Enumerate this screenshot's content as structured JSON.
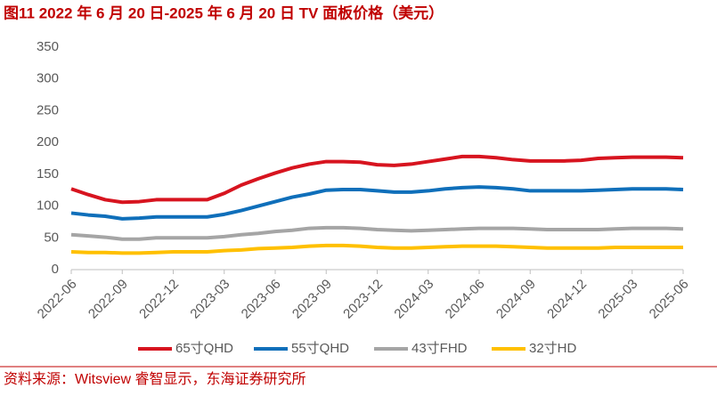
{
  "chart_data": {
    "type": "line",
    "title": "图11  2022 年 6 月 20 日-2025 年 6 月 20 日 TV 面板价格（美元）",
    "source": "资料来源：Witsview 睿智显示，东海证券研究所",
    "categories": [
      "2022-06",
      null,
      null,
      "2022-09",
      null,
      null,
      "2022-12",
      null,
      null,
      "2023-03",
      null,
      null,
      "2023-06",
      null,
      null,
      "2023-09",
      null,
      null,
      "2023-12",
      null,
      null,
      "2024-03",
      null,
      null,
      "2024-06",
      null,
      null,
      "2024-09",
      null,
      null,
      "2024-12",
      null,
      null,
      "2025-03",
      null,
      null,
      "2025-06"
    ],
    "series": [
      {
        "name": "65寸QHD",
        "color": "#d7141f",
        "values": [
          127,
          118,
          110,
          106,
          107,
          110,
          110,
          110,
          110,
          120,
          133,
          143,
          152,
          160,
          166,
          170,
          170,
          169,
          165,
          164,
          166,
          170,
          174,
          178,
          178,
          176,
          173,
          171,
          171,
          171,
          172,
          175,
          176,
          177,
          177,
          177,
          176
        ]
      },
      {
        "name": "55寸QHD",
        "color": "#0f6fba",
        "values": [
          89,
          86,
          84,
          80,
          81,
          83,
          83,
          83,
          83,
          87,
          93,
          100,
          107,
          114,
          119,
          125,
          126,
          126,
          124,
          122,
          122,
          124,
          127,
          129,
          130,
          129,
          127,
          124,
          124,
          124,
          124,
          125,
          126,
          127,
          127,
          127,
          126
        ]
      },
      {
        "name": "43寸FHD",
        "color": "#a5a5a5",
        "values": [
          55,
          53,
          51,
          48,
          48,
          50,
          50,
          50,
          50,
          52,
          55,
          57,
          60,
          62,
          65,
          66,
          66,
          65,
          63,
          62,
          61,
          62,
          63,
          64,
          65,
          65,
          65,
          64,
          63,
          63,
          63,
          63,
          64,
          65,
          65,
          65,
          64
        ]
      },
      {
        "name": "32寸HD",
        "color": "#ffc000",
        "values": [
          28,
          27,
          27,
          26,
          26,
          27,
          28,
          28,
          28,
          30,
          31,
          33,
          34,
          35,
          37,
          38,
          38,
          37,
          35,
          34,
          34,
          35,
          36,
          37,
          37,
          37,
          36,
          35,
          34,
          34,
          34,
          34,
          35,
          35,
          35,
          35,
          35
        ]
      }
    ],
    "ylim": [
      0,
      350
    ],
    "yticks": [
      0,
      50,
      100,
      150,
      200,
      250,
      300,
      350
    ]
  }
}
